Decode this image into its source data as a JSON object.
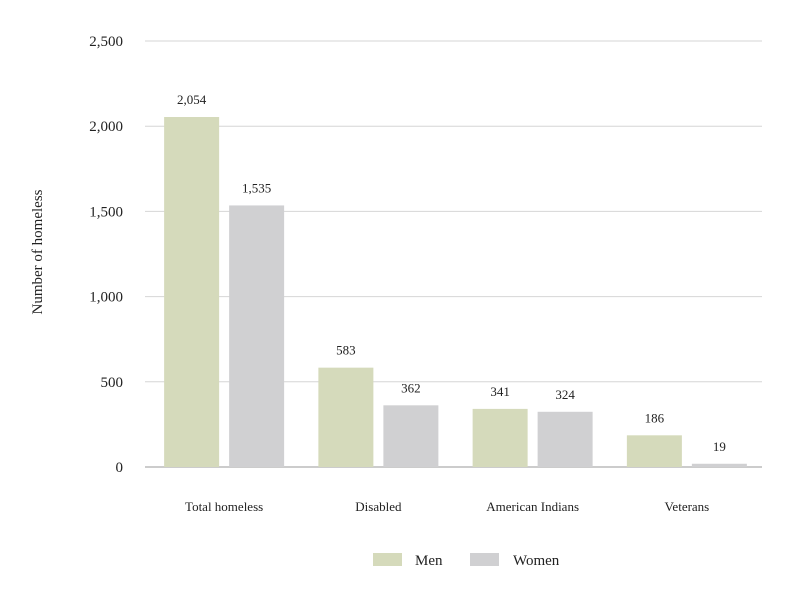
{
  "chart_data": {
    "type": "bar",
    "title": "",
    "xlabel": "",
    "ylabel": "Number of homeless",
    "ylim": [
      0,
      2500
    ],
    "yticks": [
      0,
      500,
      1000,
      1500,
      2000,
      2500
    ],
    "ytick_labels": [
      "0",
      "500",
      "1,000",
      "1,500",
      "2,000",
      "2,500"
    ],
    "grid": true,
    "legend_position": "bottom-center",
    "categories": [
      "Total homeless",
      "Disabled",
      "American Indians",
      "Veterans"
    ],
    "series": [
      {
        "name": "Men",
        "color": "#d5dabb",
        "values": [
          2054,
          583,
          341,
          186
        ],
        "labels": [
          "2,054",
          "583",
          "341",
          "186"
        ]
      },
      {
        "name": "Women",
        "color": "#d0d0d2",
        "values": [
          1535,
          362,
          324,
          19
        ],
        "labels": [
          "1,535",
          "362",
          "324",
          "19"
        ]
      }
    ]
  }
}
